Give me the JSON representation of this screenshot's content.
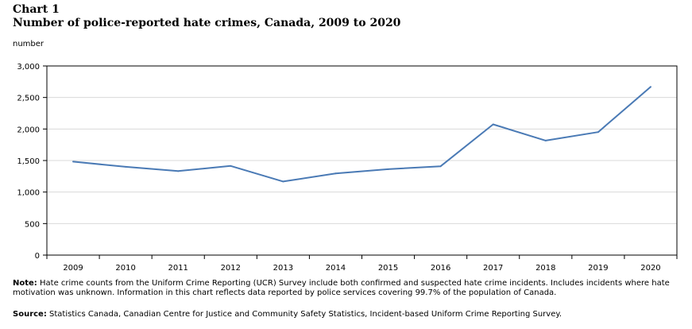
{
  "header": {
    "chart_number": "Chart 1",
    "title": "Number of police-reported hate crimes, Canada, 2009 to 2020"
  },
  "note": {
    "label": "Note:",
    "text": "Hate crime counts from the Uniform Crime Reporting (UCR) Survey include both confirmed and suspected hate crime incidents. Includes incidents where hate motivation was unknown. Information in this chart reflects data reported by police services covering 99.7% of the population of Canada."
  },
  "source": {
    "label": "Source:",
    "text": "Statistics Canada, Canadian Centre for Justice and Community Safety Statistics, Incident-based Uniform Crime Reporting Survey."
  },
  "chart_data": {
    "type": "line",
    "title": "Number of police-reported hate crimes, Canada, 2009 to 2020",
    "xlabel": "",
    "ylabel": "number",
    "categories": [
      "2009",
      "2010",
      "2011",
      "2012",
      "2013",
      "2014",
      "2015",
      "2016",
      "2017",
      "2018",
      "2019",
      "2020"
    ],
    "series": [
      {
        "name": "",
        "values": [
          1482,
          1401,
          1332,
          1414,
          1167,
          1295,
          1362,
          1409,
          2073,
          1817,
          1951,
          2669
        ],
        "color": "#4a7ab5"
      }
    ],
    "ylim": [
      0,
      3000
    ],
    "yticks": [
      0,
      500,
      1000,
      1500,
      2000,
      2500,
      3000
    ],
    "yticklabels": [
      "0",
      "500",
      "1,000",
      "1,500",
      "2,000",
      "2,500",
      "3,000"
    ],
    "grid": true,
    "legend": "none"
  }
}
